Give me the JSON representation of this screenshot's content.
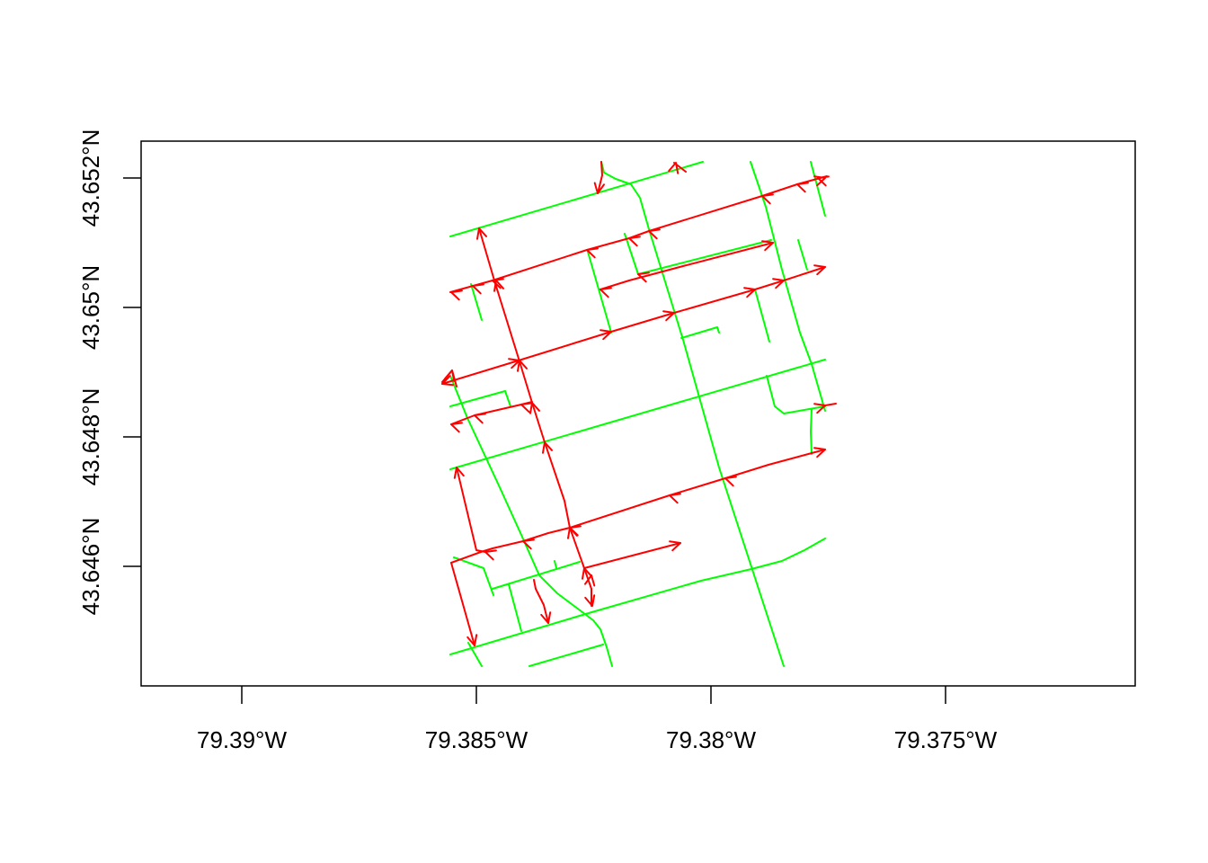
{
  "map": {
    "x_axis": {
      "tick_labels": [
        "79.39°W",
        "79.385°W",
        "79.38°W",
        "79.375°W"
      ]
    },
    "y_axis": {
      "tick_labels": [
        "43.646°N",
        "43.648°N",
        "43.65°N",
        "43.652°N"
      ]
    },
    "colors": {
      "background_network": "#00ff00",
      "directed_routes": "#ff0000",
      "axes": "#000000"
    }
  }
}
